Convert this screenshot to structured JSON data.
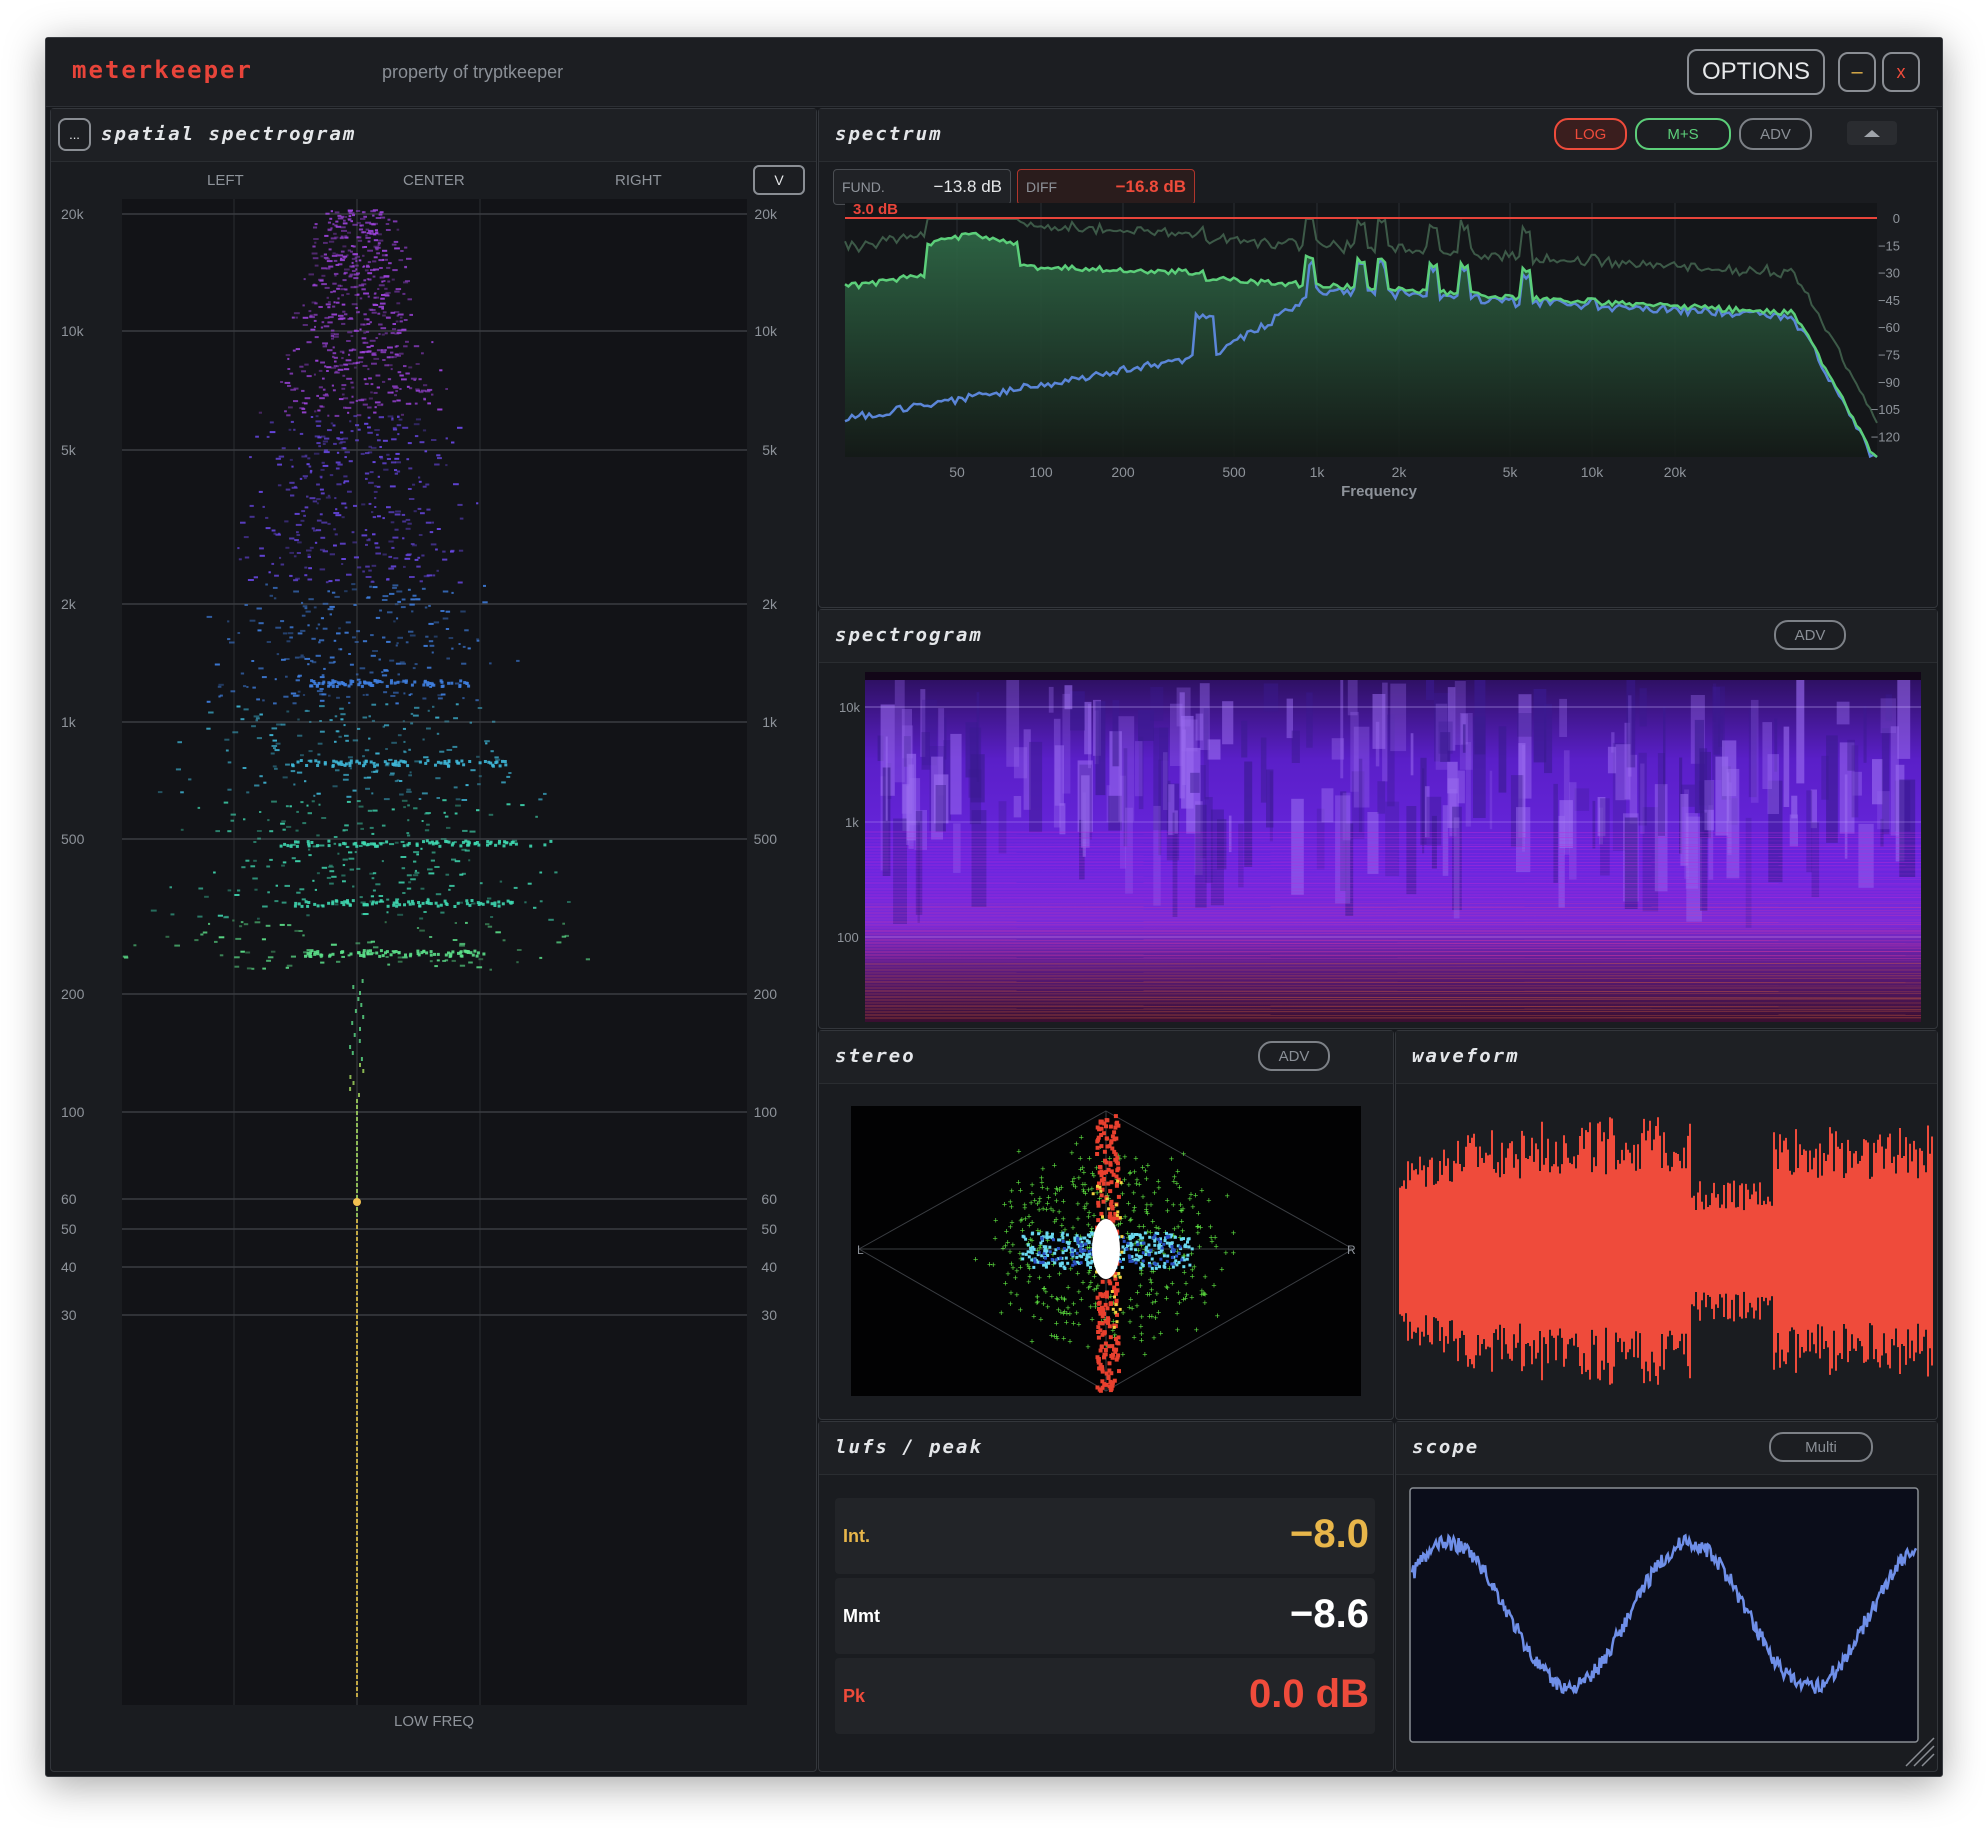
{
  "app": {
    "brand": "meterkeeper",
    "subtitle": "property of tryptkeeper"
  },
  "window_controls": {
    "options": "OPTIONS",
    "minimize": "–",
    "close": "x"
  },
  "spatial": {
    "title": "spatial spectrogram",
    "menu_btn": "...",
    "v_btn": "V",
    "col_left": "LEFT",
    "col_center": "CENTER",
    "col_right": "RIGHT",
    "footer": "LOW FREQ",
    "freq_labels": [
      "20k",
      "10k",
      "5k",
      "2k",
      "1k",
      "500",
      "200",
      "100",
      "60",
      "50",
      "40",
      "30"
    ]
  },
  "spectrum": {
    "title": "spectrum",
    "buttons": {
      "log": "LOG",
      "ms": "M+S",
      "adv": "ADV"
    },
    "fund_label": "FUND.",
    "fund_value": "−13.8 dB",
    "diff_label": "DIFF",
    "diff_value": "−16.8 dB",
    "ref_label": "3.0 dB",
    "xlabel": "Frequency",
    "x_ticks": [
      "50",
      "100",
      "200",
      "500",
      "1k",
      "2k",
      "5k",
      "10k",
      "20k"
    ],
    "y_ticks": [
      "0",
      "−15",
      "−30",
      "−45",
      "−60",
      "−75",
      "−90",
      "−105",
      "−120"
    ],
    "colors": {
      "mid": "#5ccf7a",
      "side": "#5b86d8",
      "ref": "#e8443a"
    }
  },
  "spectrogram": {
    "title": "spectrogram",
    "adv": "ADV",
    "y_ticks": [
      "10k",
      "1k",
      "100"
    ]
  },
  "stereo": {
    "title": "stereo",
    "adv": "ADV",
    "left": "L",
    "right": "R"
  },
  "waveform": {
    "title": "waveform",
    "color": "#ef4b3b"
  },
  "lufs": {
    "title": "lufs / peak",
    "rows": [
      {
        "label": "Int.",
        "value": "−8.0",
        "color": "#e8b64a"
      },
      {
        "label": "Mmt",
        "value": "−8.6",
        "color": "#ffffff"
      },
      {
        "label": "Pk",
        "value": "0.0 dB",
        "color": "#ef4b3b"
      }
    ]
  },
  "scope": {
    "title": "scope",
    "mode": "Multi",
    "color": "#6f8fe8"
  }
}
